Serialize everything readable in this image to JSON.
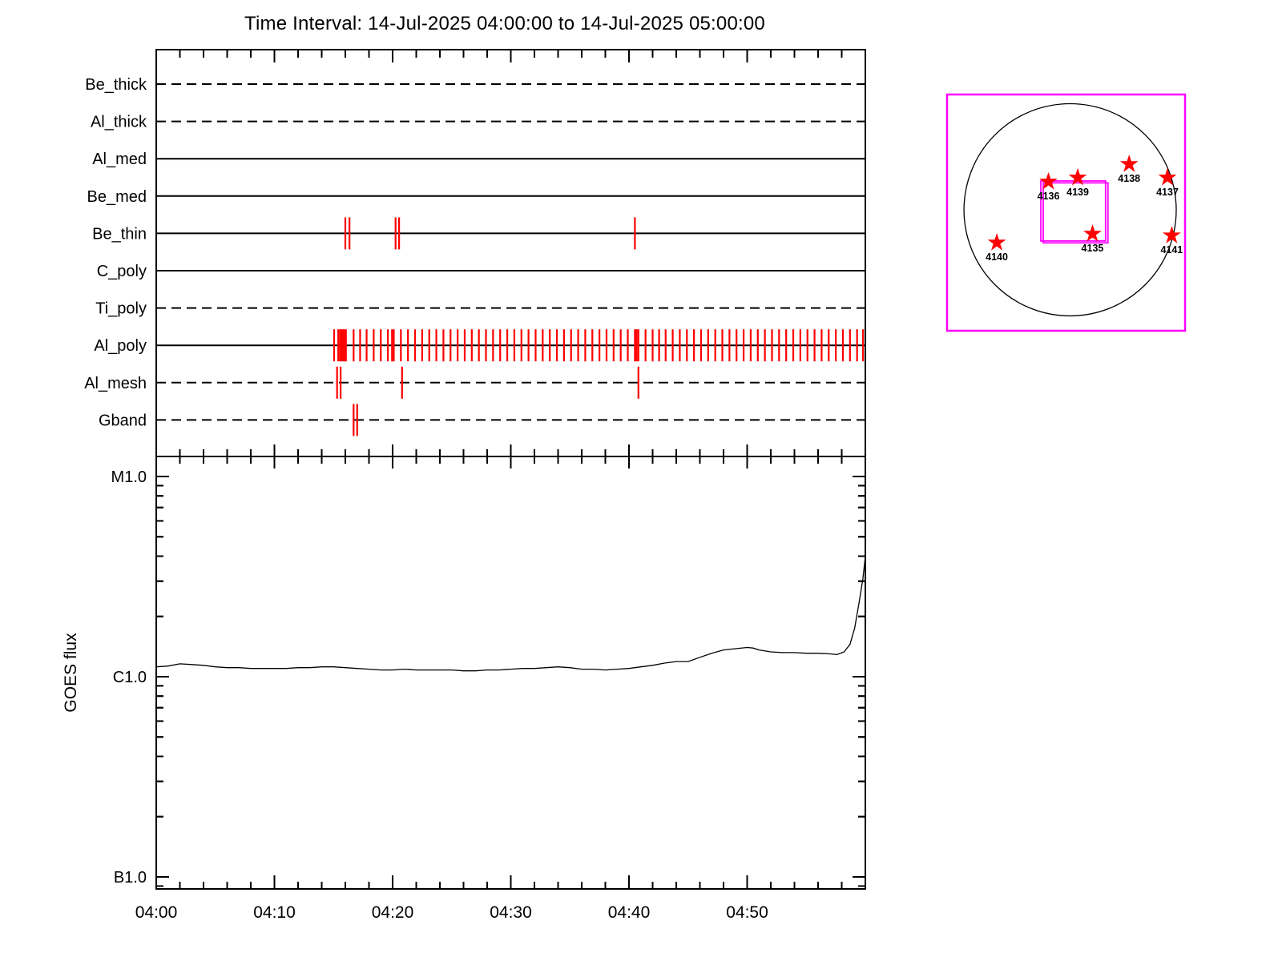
{
  "title": "Time Interval: 14-Jul-2025 04:00:00 to 14-Jul-2025 05:00:00",
  "colors": {
    "event_tick": "#ff0000",
    "star": "#ff0000",
    "frame_magenta": "#ff00ff",
    "line_black": "#000000"
  },
  "time_axis": {
    "tick_labels": [
      "04:00",
      "04:10",
      "04:20",
      "04:30",
      "04:40",
      "04:50"
    ],
    "start_min": 0,
    "end_min": 60,
    "minor_step_min": 2,
    "major_step_min": 10
  },
  "chart_data": [
    {
      "type": "event-timeline",
      "description": "XRT filter observation timeline; event times are minutes after 04:00",
      "rows": [
        {
          "label": "Be_thick",
          "line": "dashed",
          "events": []
        },
        {
          "label": "Al_thick",
          "line": "dashed",
          "events": []
        },
        {
          "label": "Al_med",
          "line": "solid",
          "events": []
        },
        {
          "label": "Be_med",
          "line": "solid",
          "events": []
        },
        {
          "label": "Be_thin",
          "line": "solid",
          "events": [
            16.0,
            16.35,
            20.25,
            20.55,
            40.5
          ]
        },
        {
          "label": "C_poly",
          "line": "solid",
          "events": []
        },
        {
          "label": "Ti_poly",
          "line": "dashed",
          "events": []
        },
        {
          "label": "Al_poly",
          "line": "solid",
          "events": [
            15.05,
            15.4,
            15.55,
            15.68,
            15.8,
            15.92,
            16.05,
            16.7,
            17.25,
            17.8,
            18.4,
            19.0,
            19.6,
            19.95,
            20.1,
            20.7,
            21.3,
            21.9,
            22.5,
            23.1,
            23.7,
            24.3,
            24.9,
            25.5,
            26.1,
            26.7,
            27.3,
            27.9,
            28.5,
            29.1,
            29.7,
            30.3,
            30.9,
            31.5,
            32.1,
            32.7,
            33.3,
            33.9,
            34.5,
            35.1,
            35.7,
            36.3,
            36.9,
            37.5,
            38.1,
            38.7,
            39.3,
            39.9,
            40.5,
            40.65,
            40.8,
            41.4,
            42.0,
            42.55,
            43.1,
            43.7,
            44.3,
            44.9,
            45.5,
            46.1,
            46.7,
            47.3,
            47.9,
            48.5,
            49.1,
            49.7,
            50.3,
            50.9,
            51.5,
            52.1,
            52.7,
            53.3,
            53.9,
            54.5,
            55.1,
            55.7,
            56.3,
            56.9,
            57.5,
            58.1,
            58.7,
            59.3,
            59.8
          ]
        },
        {
          "label": "Al_mesh",
          "line": "dashed",
          "events": [
            15.3,
            15.6,
            20.8,
            40.8
          ]
        },
        {
          "label": "Gband",
          "line": "dashed",
          "events": [
            16.7,
            17.0
          ]
        }
      ]
    },
    {
      "type": "line",
      "name": "GOES flux",
      "ylabel": "GOES flux",
      "yticks": [
        {
          "label": "M1.0",
          "flux": 10
        },
        {
          "label": "C1.0",
          "flux": 1
        },
        {
          "label": "B1.0",
          "flux": 0.1
        }
      ],
      "yscale": "log",
      "points_t_min_flux_c": [
        [
          0,
          1.12
        ],
        [
          1,
          1.13
        ],
        [
          2,
          1.16
        ],
        [
          3,
          1.15
        ],
        [
          4,
          1.14
        ],
        [
          5,
          1.12
        ],
        [
          6,
          1.11
        ],
        [
          7,
          1.11
        ],
        [
          8,
          1.1
        ],
        [
          9,
          1.1
        ],
        [
          10,
          1.1
        ],
        [
          11,
          1.1
        ],
        [
          12,
          1.11
        ],
        [
          13,
          1.11
        ],
        [
          14,
          1.12
        ],
        [
          15,
          1.12
        ],
        [
          16,
          1.11
        ],
        [
          17,
          1.1
        ],
        [
          18,
          1.09
        ],
        [
          19,
          1.08
        ],
        [
          20,
          1.08
        ],
        [
          21,
          1.09
        ],
        [
          22,
          1.08
        ],
        [
          23,
          1.08
        ],
        [
          24,
          1.08
        ],
        [
          25,
          1.08
        ],
        [
          26,
          1.07
        ],
        [
          27,
          1.07
        ],
        [
          28,
          1.08
        ],
        [
          29,
          1.08
        ],
        [
          30,
          1.09
        ],
        [
          31,
          1.1
        ],
        [
          32,
          1.1
        ],
        [
          33,
          1.11
        ],
        [
          34,
          1.12
        ],
        [
          35,
          1.11
        ],
        [
          36,
          1.09
        ],
        [
          37,
          1.09
        ],
        [
          38,
          1.08
        ],
        [
          39,
          1.09
        ],
        [
          40,
          1.1
        ],
        [
          41,
          1.12
        ],
        [
          42,
          1.14
        ],
        [
          43,
          1.17
        ],
        [
          44,
          1.19
        ],
        [
          45,
          1.19
        ],
        [
          46,
          1.25
        ],
        [
          47,
          1.31
        ],
        [
          48,
          1.36
        ],
        [
          49,
          1.38
        ],
        [
          50,
          1.4
        ],
        [
          50.5,
          1.39
        ],
        [
          51,
          1.36
        ],
        [
          52,
          1.33
        ],
        [
          53,
          1.32
        ],
        [
          54,
          1.32
        ],
        [
          55,
          1.31
        ],
        [
          56,
          1.31
        ],
        [
          57,
          1.3
        ],
        [
          57.6,
          1.29
        ],
        [
          58.2,
          1.33
        ],
        [
          58.7,
          1.45
        ],
        [
          59.1,
          1.75
        ],
        [
          59.5,
          2.4
        ],
        [
          59.8,
          3.1
        ],
        [
          60,
          4.0
        ]
      ]
    },
    {
      "type": "scatter",
      "name": "solar-disk-active-regions",
      "circle": {
        "cx": 0.517,
        "cy": 0.488,
        "r": 0.446
      },
      "fov_box": {
        "x": 0.394,
        "y": 0.366,
        "w": 0.272,
        "h": 0.254,
        "offset_x": 0.01,
        "offset_y": 0.008
      },
      "stars": [
        {
          "id": "4135",
          "x": 0.611,
          "y": 0.59
        },
        {
          "id": "4136",
          "x": 0.426,
          "y": 0.369
        },
        {
          "id": "4137",
          "x": 0.926,
          "y": 0.352
        },
        {
          "id": "4138",
          "x": 0.765,
          "y": 0.295
        },
        {
          "id": "4139",
          "x": 0.549,
          "y": 0.352
        },
        {
          "id": "4140",
          "x": 0.209,
          "y": 0.627
        },
        {
          "id": "4141",
          "x": 0.944,
          "y": 0.597
        }
      ]
    }
  ]
}
